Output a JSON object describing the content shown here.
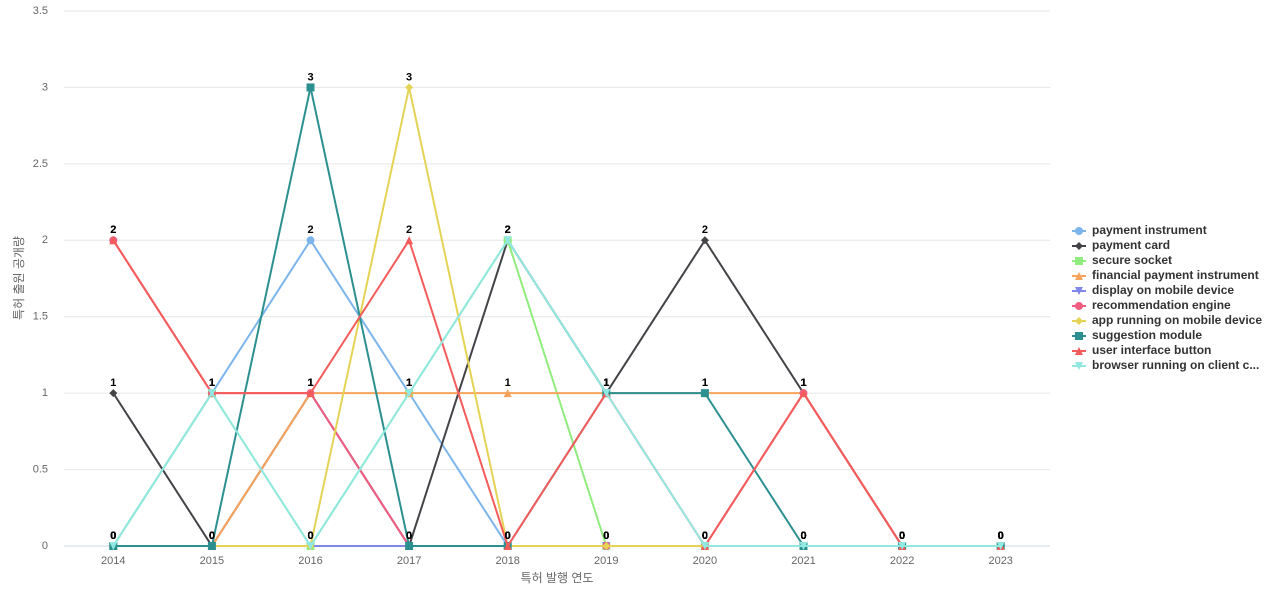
{
  "chart_data": {
    "type": "line",
    "x_label": "특허 발행 연도",
    "y_label": "특허 출원 공개량",
    "categories": [
      "2014",
      "2015",
      "2016",
      "2017",
      "2018",
      "2019",
      "2020",
      "2021",
      "2022",
      "2023"
    ],
    "ylim": [
      0,
      3.5
    ],
    "yticks": [
      0,
      0.5,
      1,
      1.5,
      2,
      2.5,
      3,
      3.5
    ],
    "grid": true,
    "legend": "right",
    "series": [
      {
        "name": "payment instrument",
        "color": "#7cb5ec",
        "marker": "circle",
        "values": [
          0,
          1,
          2,
          1,
          0,
          0,
          0,
          0,
          0,
          0
        ]
      },
      {
        "name": "payment card",
        "color": "#434348",
        "marker": "diamond",
        "values": [
          1,
          0,
          1,
          0,
          2,
          1,
          2,
          1,
          0,
          0
        ]
      },
      {
        "name": "secure socket",
        "color": "#90ed7d",
        "marker": "square",
        "values": [
          0,
          1,
          0,
          1,
          2,
          0,
          0,
          0,
          0,
          0
        ]
      },
      {
        "name": "financial payment instrument",
        "color": "#f7a35c",
        "marker": "triangle",
        "values": [
          0,
          0,
          1,
          1,
          1,
          1,
          1,
          1,
          0,
          0
        ]
      },
      {
        "name": "display on mobile device",
        "color": "#8085e9",
        "marker": "triangle-down",
        "values": [
          0,
          0,
          0,
          0,
          0,
          0,
          0,
          0,
          0,
          0
        ]
      },
      {
        "name": "recommendation engine",
        "color": "#f15c80",
        "marker": "circle",
        "values": [
          2,
          1,
          1,
          0,
          0,
          0,
          0,
          1,
          0,
          0
        ]
      },
      {
        "name": "app running on mobile device",
        "color": "#e4d354",
        "marker": "diamond",
        "values": [
          0,
          0,
          0,
          3,
          0,
          0,
          0,
          0,
          0,
          0
        ]
      },
      {
        "name": "suggestion module",
        "color": "#2b908f",
        "marker": "square",
        "values": [
          0,
          0,
          3,
          0,
          0,
          1,
          1,
          0,
          0,
          0
        ]
      },
      {
        "name": "user interface button",
        "color": "#f45b5b",
        "marker": "triangle",
        "values": [
          2,
          1,
          1,
          2,
          0,
          1,
          0,
          1,
          0,
          0
        ]
      },
      {
        "name": "browser running on client c...",
        "color": "#91e8e1",
        "marker": "triangle-down",
        "values": [
          0,
          1,
          0,
          1,
          2,
          1,
          0,
          0,
          0,
          0
        ]
      }
    ]
  }
}
